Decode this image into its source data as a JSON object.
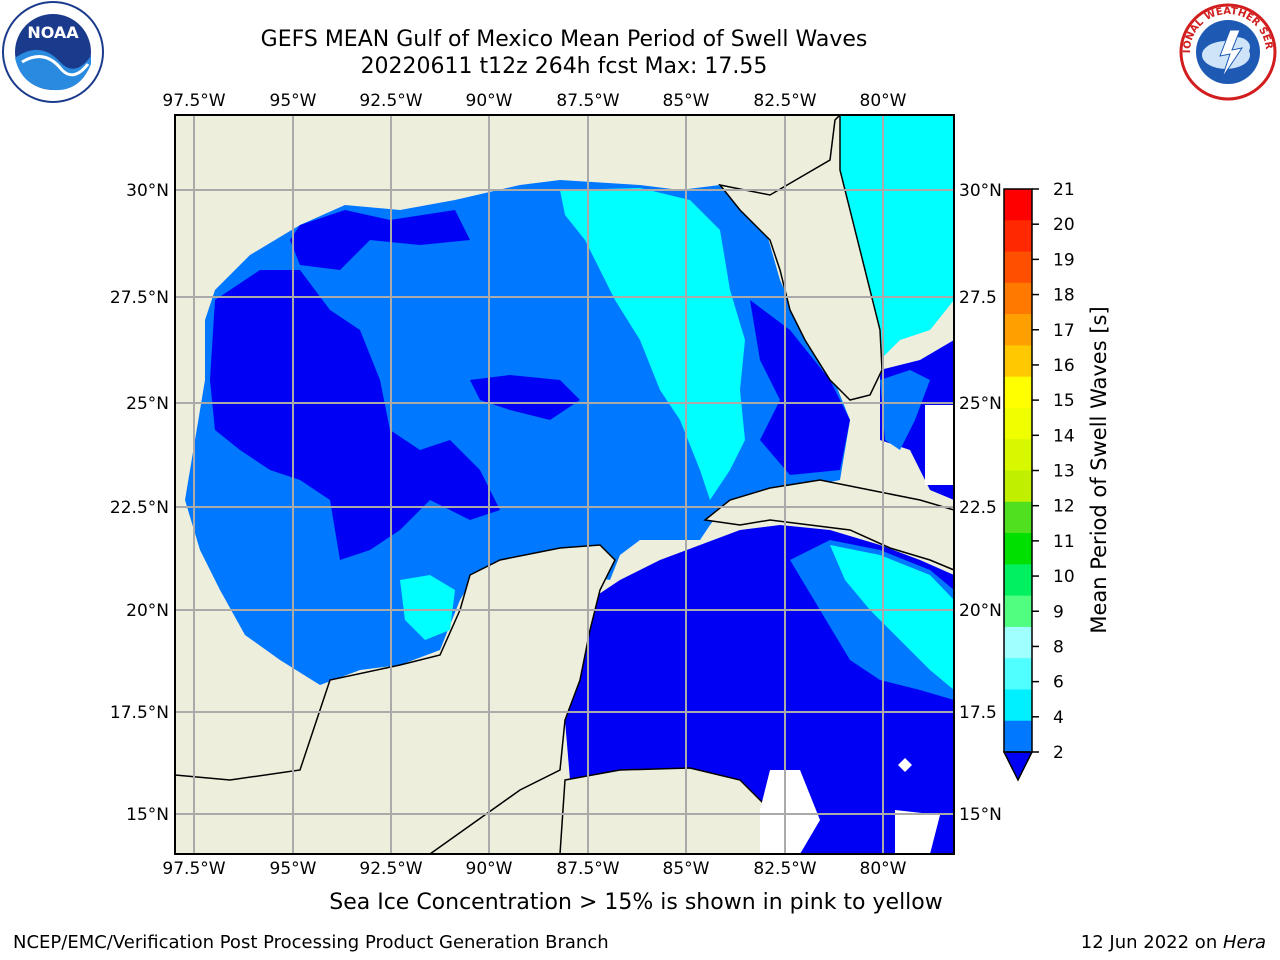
{
  "header": {
    "title_line1": "GEFS MEAN Gulf of Mexico Mean Period of Swell Waves",
    "title_line2": "20220611 t12z 264h fcst   Max: 17.55"
  },
  "map": {
    "lon_ticks": [
      "97.5°W",
      "95°W",
      "92.5°W",
      "90°W",
      "87.5°W",
      "85°W",
      "82.5°W",
      "80°W"
    ],
    "lat_ticks_left": [
      "30°N",
      "27.5°N",
      "25°N",
      "22.5°N",
      "20°N",
      "17.5°N",
      "15°N"
    ],
    "lat_ticks_right": [
      "30°N",
      "27.5",
      "25°N",
      "22.5",
      "20°N",
      "17.5",
      "15°N"
    ],
    "colors": {
      "land": "#eeeedc",
      "deep_blue": "#0000f5",
      "mid_blue": "#0078ff",
      "cyan": "#00ffff",
      "light_cyan": "#40f0f0",
      "ice_yellow": "#f0f000",
      "ice_orange": "#ffc800"
    }
  },
  "colorbar": {
    "label": "Mean Period of Swell Waves [s]",
    "ticks": [
      "21",
      "20",
      "19",
      "18",
      "17",
      "16",
      "15",
      "14",
      "13",
      "12",
      "11",
      "10",
      "9",
      "8",
      "6",
      "4",
      "2"
    ],
    "colors": [
      "#ff0000",
      "#ff2800",
      "#ff5000",
      "#ff7800",
      "#ffa000",
      "#ffc800",
      "#ffff00",
      "#f0ff00",
      "#d8f800",
      "#c0f000",
      "#50e020",
      "#00e000",
      "#00f060",
      "#50ff80",
      "#a0ffff",
      "#50ffff",
      "#00f0ff",
      "#0078ff"
    ]
  },
  "footer": {
    "ice_note": "Sea Ice Concentration > 15% is shown in pink to yellow",
    "credit": "NCEP/EMC/Verification Post Processing Product Generation Branch",
    "date_prefix": "12 Jun 2022 on ",
    "host": "Hera"
  },
  "logos": {
    "noaa_text": "NOAA",
    "nws_text": "NATIONAL WEATHER SERVICE"
  }
}
